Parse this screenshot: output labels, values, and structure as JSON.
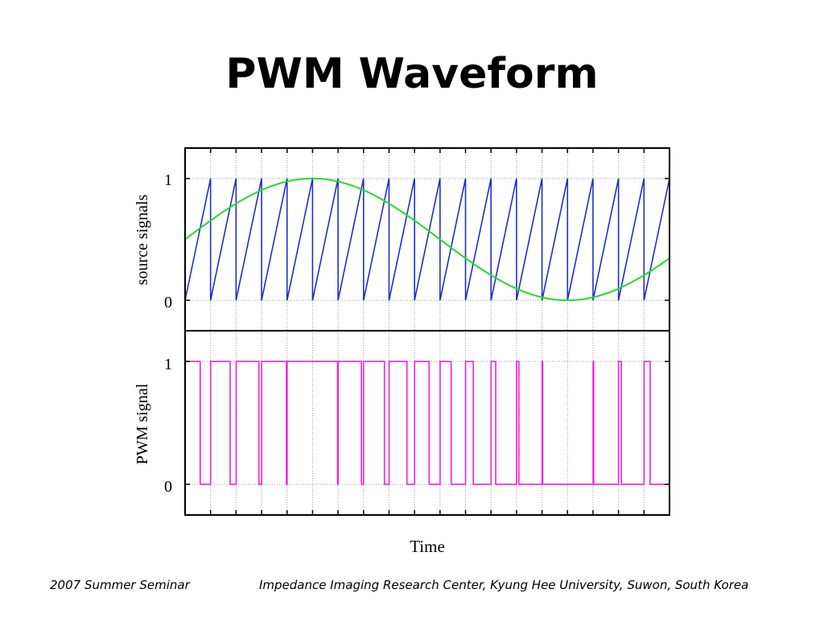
{
  "slide": {
    "title": "PWM Waveform",
    "footer_left": "2007 Summer Seminar",
    "footer_right": "Impedance Imaging Research Center, Kyung Hee University, Suwon, South Korea"
  },
  "colors": {
    "sawtooth": "#1f2fc8",
    "sine": "#22dd22",
    "pwm": "#ee22dd",
    "axes": "#000000",
    "grid": "#999999"
  },
  "chart_data": [
    {
      "type": "line",
      "ylabel": "source signals",
      "xlabel": "",
      "ylim": [
        -0.25,
        1.25
      ],
      "xlim": [
        0,
        19
      ],
      "y_ticks": [
        "0",
        "1"
      ],
      "grid": "dotted vertical at each sawtooth period, horizontal at 0 and 1",
      "series": [
        {
          "kind": "sawtooth",
          "period": 1,
          "resets_at": [
            1,
            2,
            3,
            4,
            5,
            6,
            7,
            8,
            9,
            10,
            11,
            12,
            13,
            14,
            15,
            16,
            17,
            18
          ],
          "min": 0,
          "max": 1
        },
        {
          "kind": "sine",
          "offset": 0.5,
          "amplitude": 0.5,
          "period": 20,
          "values": [
            0.5,
            0.654,
            0.794,
            0.905,
            0.976,
            1.0,
            0.976,
            0.905,
            0.794,
            0.654,
            0.5,
            0.346,
            0.206,
            0.095,
            0.024,
            0.0,
            0.024,
            0.095,
            0.206,
            0.346
          ]
        }
      ]
    },
    {
      "type": "line",
      "ylabel": "PWM signal",
      "xlabel": "Time",
      "ylim": [
        -0.25,
        1.25
      ],
      "xlim": [
        0,
        19
      ],
      "y_ticks": [
        "0",
        "1"
      ],
      "series": [
        {
          "kind": "pwm",
          "description_rule": "1 when sine > sawtooth, else 0"
        }
      ]
    }
  ]
}
